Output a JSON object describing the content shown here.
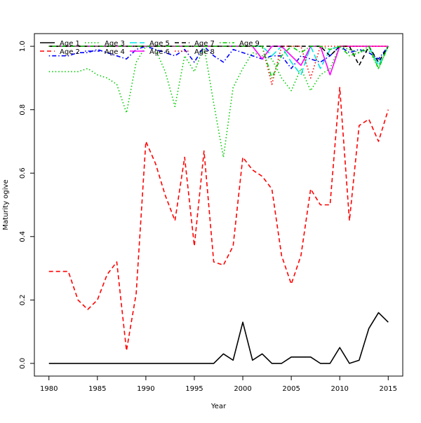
{
  "chart_data": {
    "type": "line",
    "title": "",
    "xlabel": "Year",
    "ylabel": "Maturity ogive",
    "xlim": [
      1978.5,
      2016.5
    ],
    "ylim": [
      -0.04,
      1.04
    ],
    "xticks": [
      1980,
      1985,
      1990,
      1995,
      2000,
      2005,
      2010,
      2015
    ],
    "yticks": [
      0.0,
      0.2,
      0.4,
      0.6,
      0.8,
      1.0
    ],
    "legend_position": "top-left",
    "grid": false,
    "x": [
      1980,
      1981,
      1982,
      1983,
      1984,
      1985,
      1986,
      1987,
      1988,
      1989,
      1990,
      1991,
      1992,
      1993,
      1994,
      1995,
      1996,
      1997,
      1998,
      1999,
      2000,
      2001,
      2002,
      2003,
      2004,
      2005,
      2006,
      2007,
      2008,
      2009,
      2010,
      2011,
      2012,
      2013,
      2014,
      2015
    ],
    "series": [
      {
        "name": "Age 1",
        "color": "#000000",
        "dash": "solid",
        "values": [
          0,
          0,
          0,
          0,
          0,
          0,
          0,
          0,
          0,
          0,
          0,
          0,
          0,
          0,
          0,
          0,
          0,
          0,
          0.03,
          0.01,
          0.13,
          0.01,
          0.03,
          0,
          0,
          0.02,
          0.02,
          0.02,
          0,
          0,
          0.05,
          0,
          0.01,
          0.11,
          0.16,
          0.13
        ]
      },
      {
        "name": "Age 2",
        "color": "#ff0000",
        "dash": "dashed",
        "values": [
          0.29,
          0.29,
          0.29,
          0.2,
          0.17,
          0.2,
          0.28,
          0.32,
          0.04,
          0.22,
          0.7,
          0.63,
          0.53,
          0.45,
          0.65,
          0.37,
          0.67,
          0.32,
          0.31,
          0.37,
          0.65,
          0.61,
          0.59,
          0.55,
          0.34,
          0.25,
          0.34,
          0.55,
          0.5,
          0.5,
          0.87,
          0.45,
          0.75,
          0.77,
          0.7,
          0.8
        ]
      },
      {
        "name": "Age 3",
        "color": "#00cc00",
        "dash": "dotted",
        "values": [
          0.92,
          0.92,
          0.92,
          0.92,
          0.93,
          0.91,
          0.9,
          0.88,
          0.79,
          0.95,
          1,
          0.99,
          0.92,
          0.81,
          0.97,
          0.92,
          1,
          0.82,
          0.65,
          0.87,
          0.93,
          0.98,
          0.97,
          0.96,
          0.9,
          0.86,
          0.93,
          0.86,
          0.91,
          0.93,
          1,
          0.99,
          0.98,
          0.99,
          0.93,
          1
        ]
      },
      {
        "name": "Age 4",
        "color": "#0000ff",
        "dash": "dashdot",
        "values": [
          0.97,
          0.97,
          0.97,
          0.98,
          0.98,
          0.99,
          0.98,
          0.97,
          0.96,
          0.99,
          1,
          0.99,
          0.98,
          0.97,
          0.99,
          0.95,
          1,
          0.97,
          0.95,
          0.99,
          0.98,
          0.97,
          0.96,
          0.97,
          0.97,
          0.93,
          0.97,
          0.96,
          0.95,
          0.97,
          1,
          0.98,
          0.99,
          0.98,
          0.96,
          1
        ]
      },
      {
        "name": "Age 5",
        "color": "#00e5e5",
        "dash": "longdash",
        "values": [
          1,
          1,
          1,
          1,
          1,
          1,
          1,
          1,
          1,
          1,
          1,
          1,
          1,
          1,
          1,
          1,
          1,
          1,
          1,
          1,
          1,
          1,
          1,
          0.97,
          1,
          0.95,
          0.91,
          1,
          0.93,
          0.99,
          1,
          1,
          1,
          1,
          0.94,
          1
        ]
      },
      {
        "name": "Age 6",
        "color": "#ff00ff",
        "dash": "solid",
        "values": [
          1,
          1,
          1,
          1,
          1,
          1,
          1,
          1,
          1,
          1,
          1,
          1,
          1,
          1,
          1,
          1,
          1,
          1,
          1,
          1,
          1,
          1,
          0.96,
          1,
          1,
          0.97,
          0.94,
          1,
          1,
          0.91,
          1,
          1,
          1,
          1,
          1,
          1
        ]
      },
      {
        "name": "Age 7",
        "color": "#000000",
        "dash": "dashed",
        "values": [
          1,
          1,
          1,
          1,
          1,
          1,
          1,
          1,
          1,
          1,
          1,
          1,
          1,
          1,
          1,
          1,
          1,
          1,
          1,
          1,
          1,
          1,
          1,
          1,
          1,
          1,
          1,
          1,
          1,
          0.97,
          1,
          1,
          0.94,
          1,
          0.95,
          1
        ]
      },
      {
        "name": "Age 8",
        "color": "#ff0000",
        "dash": "dotted",
        "values": [
          1,
          1,
          1,
          1,
          1,
          1,
          1,
          1,
          1,
          1,
          1,
          1,
          1,
          1,
          1,
          1,
          1,
          1,
          1,
          1,
          1,
          1,
          1,
          0.88,
          1,
          1,
          1,
          0.9,
          1,
          1,
          1,
          1,
          1,
          1,
          1,
          1
        ]
      },
      {
        "name": "Age 9",
        "color": "#00cc00",
        "dash": "dashdot",
        "values": [
          1,
          1,
          1,
          1,
          1,
          1,
          1,
          1,
          1,
          1,
          1,
          1,
          1,
          1,
          1,
          1,
          1,
          1,
          1,
          1,
          1,
          1,
          1,
          0.9,
          0.97,
          1,
          0.98,
          1,
          1,
          0.99,
          1,
          0.97,
          0.98,
          1,
          0.93,
          1
        ]
      }
    ]
  }
}
